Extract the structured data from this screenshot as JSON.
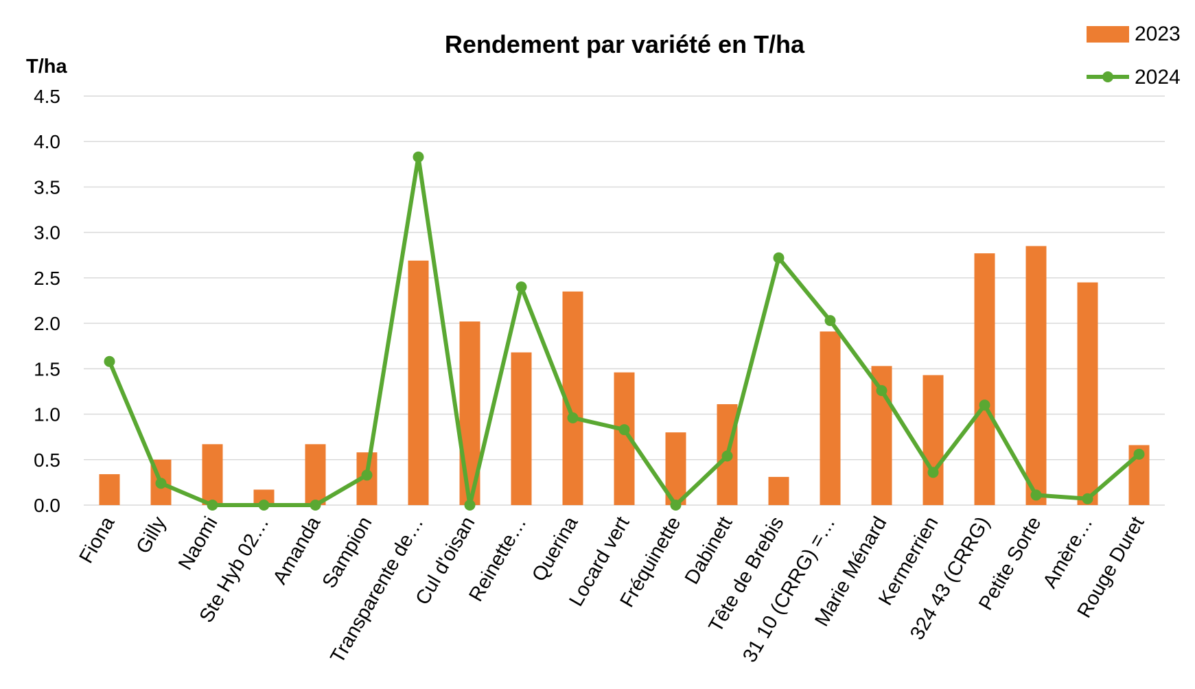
{
  "chart_data": {
    "type": "bar",
    "title": "Rendement par variété en T/ha",
    "ylabel": "T/ha",
    "xlabel": "",
    "ylim": [
      0,
      4.5
    ],
    "yticks": [
      "0.0",
      "0.5",
      "1.0",
      "1.5",
      "2.0",
      "2.5",
      "3.0",
      "3.5",
      "4.0",
      "4.5"
    ],
    "grid": true,
    "legend_position": "top-right",
    "categories": [
      "Fiona",
      "Gilly",
      "Naomi",
      "Ste Hyb 02…",
      "Amanda",
      "Sampion",
      "Transparente de…",
      "Cul d'oisan",
      "Reinette…",
      "Querina",
      "Locard vert",
      "Fréquinette",
      "Dabinett",
      "Tête de Brebis",
      "31 10 (CRRG) =…",
      "Marie Ménard",
      "Kermerrien",
      "324 43 (CRRG)",
      "Petite Sorte",
      "Amère…",
      "Rouge Duret"
    ],
    "series": [
      {
        "name": "2023",
        "kind": "bar",
        "color": "#ed7d31",
        "values": [
          0.34,
          0.5,
          0.67,
          0.17,
          0.67,
          0.58,
          2.69,
          2.02,
          1.68,
          2.35,
          1.46,
          0.8,
          1.11,
          0.31,
          1.91,
          1.53,
          1.43,
          2.77,
          2.85,
          2.45,
          0.66
        ]
      },
      {
        "name": "2024",
        "kind": "line",
        "color": "#5aa832",
        "values": [
          1.58,
          0.24,
          0.0,
          0.0,
          0.0,
          0.33,
          3.83,
          0.0,
          2.4,
          0.96,
          0.83,
          0.0,
          0.54,
          2.72,
          2.03,
          1.26,
          0.36,
          1.1,
          0.11,
          0.07,
          0.56
        ]
      }
    ]
  }
}
